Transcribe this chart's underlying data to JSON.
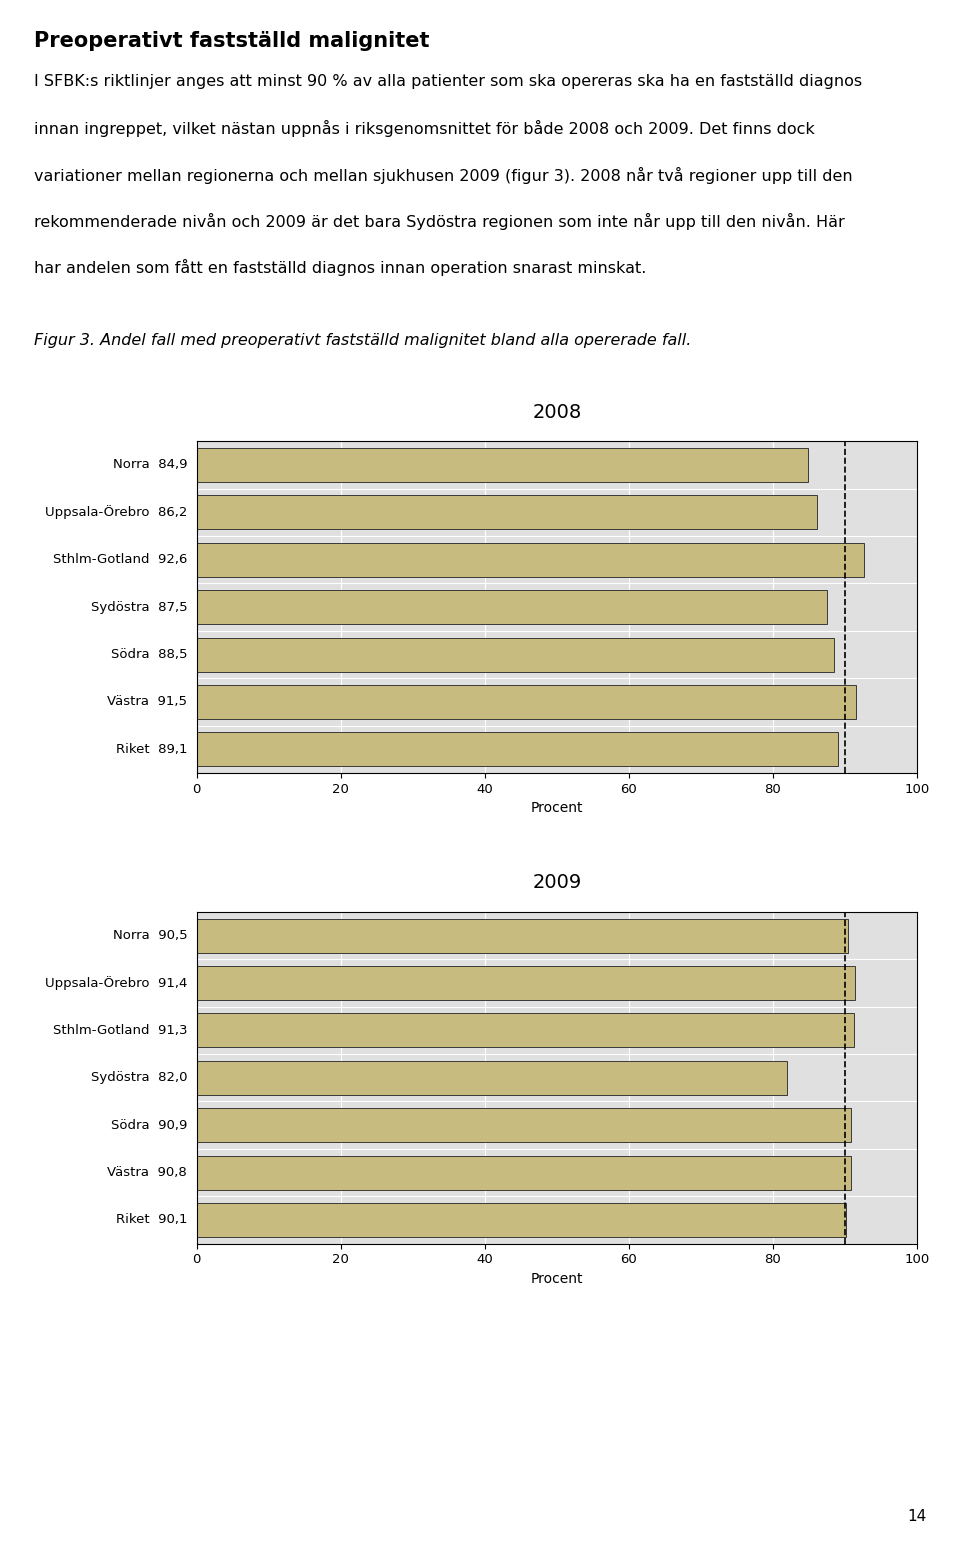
{
  "title_main": "Preoperativt fastställd malignitet",
  "body_text": "I SFBK:s riktlinjer anges att minst 90 % av alla patienter som ska opereras ska ha en fastställd diagnos\ninnan ingreppet, vilket nästan uppnås i riksgenomsnittet för både 2008 och 2009. Det finns dock\nvariationer mellan regionerna och mellan sjukhusen 2009 (figur 3). 2008 når två regioner upp till den\nrekommenderade nivån och 2009 är det bara Sydöstra regionen som inte når upp till den nivån. Här\nhar andelen som fått en fastställd diagnos innan operation snarast minskat.",
  "caption": "Figur 3. Andel fall med preoperativt fastställd malignitet bland alla opererade fall.",
  "chart2008": {
    "title": "2008",
    "categories": [
      "Norra",
      "Uppsala-Örebro",
      "Sthlm-Gotland",
      "Sydöstra",
      "Södra",
      "Västra",
      "Riket"
    ],
    "values": [
      84.9,
      86.2,
      92.6,
      87.5,
      88.5,
      91.5,
      89.1
    ],
    "labels": [
      "84,9",
      "86,2",
      "92,6",
      "87,5",
      "88,5",
      "91,5",
      "89,1"
    ],
    "reference_line": 90
  },
  "chart2009": {
    "title": "2009",
    "categories": [
      "Norra",
      "Uppsala-Örebro",
      "Sthlm-Gotland",
      "Sydöstra",
      "Södra",
      "Västra",
      "Riket"
    ],
    "values": [
      90.5,
      91.4,
      91.3,
      82.0,
      90.9,
      90.8,
      90.1
    ],
    "labels": [
      "90,5",
      "91,4",
      "91,3",
      "82,0",
      "90,9",
      "90,8",
      "90,1"
    ],
    "reference_line": 90
  },
  "bar_color": "#C8BB80",
  "bar_edge_color": "#222222",
  "plot_bg_color": "#E0E0E0",
  "xlabel": "Procent",
  "xlim": [
    0,
    100
  ],
  "xticks": [
    0,
    20,
    40,
    60,
    80,
    100
  ],
  "page_number": "14",
  "title_fontsize": 15,
  "body_fontsize": 11.5,
  "caption_fontsize": 11.5,
  "chart_title_fontsize": 14,
  "label_fontsize": 9.5,
  "tick_fontsize": 9.5,
  "xlabel_fontsize": 10
}
